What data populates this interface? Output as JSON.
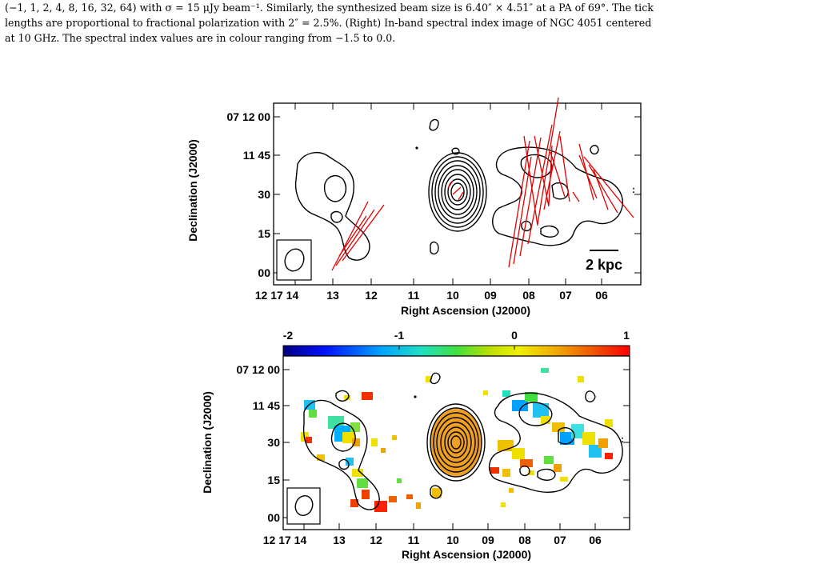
{
  "caption": {
    "line1": "(−1, 1, 2, 4, 8, 16, 32, 64) with σ = 15 μJy beam⁻¹. Similarly, the synthesized beam size is 6.40″ × 4.51″ at a PA of 69°. The tick",
    "line2": "lengths are proportional to fractional polarization with 2″ = 2.5%. (Right) In-band spectral index image of NGC 4051 centered",
    "line3": "at 10 GHz. The spectral index values are in colour ranging from −1.5 to 0.0."
  },
  "top_panel": {
    "ylabel": "Declination (J2000)",
    "xlabel": "Right Ascension (J2000)",
    "yticks": [
      "07 12 00",
      "11 45",
      "30",
      "15",
      "00"
    ],
    "xticks": [
      "12 17 14",
      "13",
      "12",
      "11",
      "10",
      "09",
      "08",
      "07",
      "06"
    ],
    "scalebar_label": "2 kpc"
  },
  "bottom_panel": {
    "ylabel": "Declination (J2000)",
    "xlabel": "Right Ascension (J2000)",
    "yticks": [
      "07 12 00",
      "11 45",
      "30",
      "15",
      "00"
    ],
    "xticks": [
      "12 17 14",
      "13",
      "12",
      "11",
      "10",
      "09",
      "08",
      "07",
      "06"
    ],
    "colorbar_ticks": [
      "-2",
      "-1",
      "0",
      "1"
    ],
    "colorbar_range": [
      -2,
      1
    ]
  },
  "colors": {
    "contour": "#000000",
    "vectors": "#e00000",
    "core_fill": "#f0a020"
  }
}
